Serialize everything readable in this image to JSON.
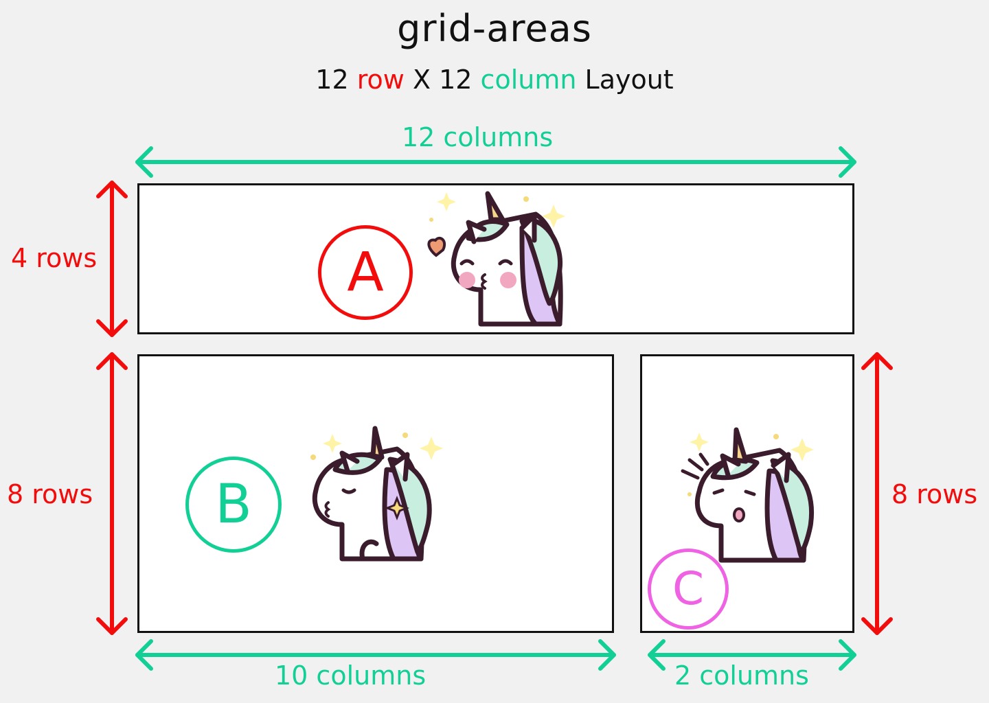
{
  "title": "grid-areas",
  "subtitle": {
    "rows_count": "12",
    "row_word": "row",
    "separator": "X",
    "cols_count": "12",
    "column_word": "column",
    "layout_word": "Layout"
  },
  "labels": {
    "top_columns": "12 columns",
    "a_rows": "4 rows",
    "b_rows": "8 rows",
    "c_rows": "8 rows",
    "b_columns": "10 columns",
    "c_columns": "2 columns"
  },
  "areas": {
    "a": {
      "letter": "A",
      "color": "#f20c0c",
      "illustration": "unicorn-kiss-heart"
    },
    "b": {
      "letter": "B",
      "color": "#12cf96",
      "illustration": "unicorn-kiss-eyes-closed"
    },
    "c": {
      "letter": "C",
      "color": "#ee62e3",
      "illustration": "unicorn-surprised"
    }
  },
  "colors": {
    "rows": "#f20c0c",
    "columns": "#12cf96",
    "border": "#111111",
    "background": "#f1f1f1"
  }
}
